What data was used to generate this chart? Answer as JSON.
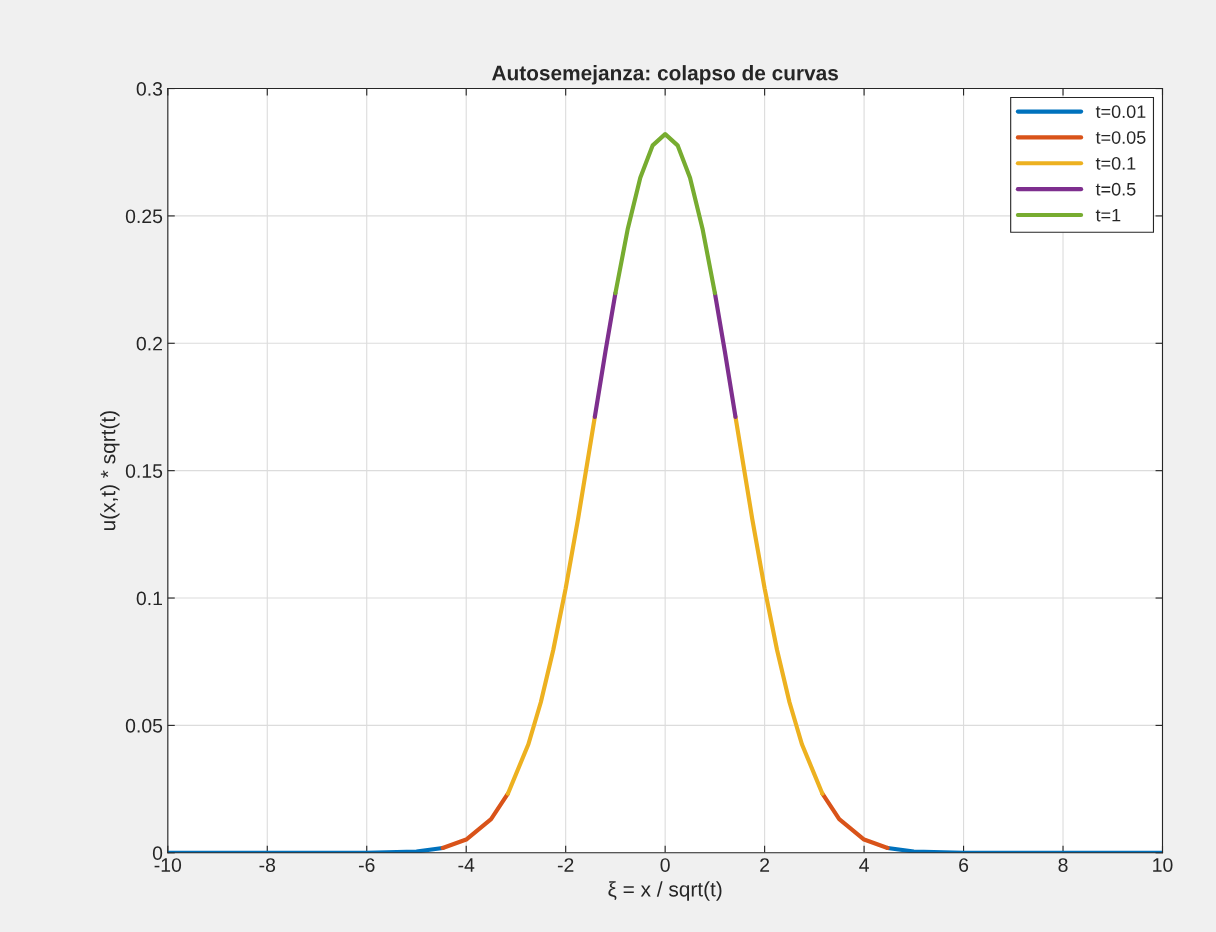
{
  "chart_data": {
    "type": "line",
    "title": "Autosemejanza: colapso de curvas",
    "xlabel": "ξ = x / sqrt(t)",
    "ylabel": "u(x,t) * sqrt(t)",
    "xlim": [
      -10,
      10
    ],
    "xticks": [
      -10,
      -8,
      -6,
      -4,
      -2,
      0,
      2,
      4,
      6,
      8,
      10
    ],
    "ylim": [
      0,
      0.3
    ],
    "yticks": [
      0,
      0.05,
      0.1,
      0.15,
      0.2,
      0.25,
      0.3
    ],
    "grid": true,
    "legend": "top right",
    "marker": "none",
    "line_style": "solid",
    "series": [
      {
        "name": "t=0.01",
        "color": "#0072bd",
        "x": [
          -10,
          -8,
          -6,
          -5,
          -4.472,
          0,
          4.472,
          5,
          6,
          8,
          10
        ],
        "values": [
          0,
          0,
          0,
          0.0005,
          0.0019,
          null,
          0.0019,
          0.0005,
          0,
          0,
          0
        ]
      },
      {
        "name": "t=0.05",
        "color": "#d95319",
        "x": [
          -4.472,
          -4,
          -3.5,
          -3.162,
          0,
          3.162,
          3.5,
          4,
          4.472
        ],
        "values": [
          0.0019,
          0.0052,
          0.0132,
          0.0232,
          null,
          0.0232,
          0.0132,
          0.0052,
          0.0019
        ]
      },
      {
        "name": "t=0.1",
        "color": "#edb120",
        "x": [
          -3.162,
          -2.75,
          -2.5,
          -2.25,
          -2,
          -1.75,
          -1.414,
          0,
          1.414,
          1.75,
          2,
          2.25,
          2.5,
          2.75,
          3.162
        ],
        "values": [
          0.0232,
          0.0426,
          0.0591,
          0.0796,
          0.1038,
          0.1312,
          0.1711,
          null,
          0.1711,
          0.1312,
          0.1038,
          0.0796,
          0.0591,
          0.0426,
          0.0232
        ]
      },
      {
        "name": "t=0.5",
        "color": "#7e2f8e",
        "x": [
          -1.414,
          -1.2,
          -1,
          0,
          1,
          1.2,
          1.414
        ],
        "values": [
          0.1711,
          0.1968,
          0.2197,
          null,
          0.2197,
          0.1968,
          0.1711
        ]
      },
      {
        "name": "t=1",
        "color": "#77ac30",
        "x": [
          -1,
          -0.75,
          -0.5,
          -0.25,
          0,
          0.25,
          0.5,
          0.75,
          1
        ],
        "values": [
          0.2197,
          0.2451,
          0.265,
          0.2777,
          0.2821,
          0.2777,
          0.265,
          0.2451,
          0.2197
        ]
      }
    ]
  }
}
